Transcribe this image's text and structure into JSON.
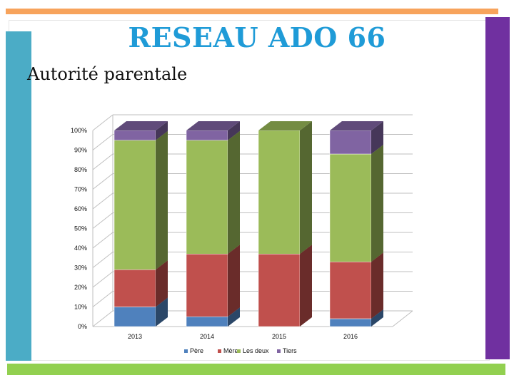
{
  "slide": {
    "title": "RESEAU ADO 66",
    "subtitle": "Autorité parentale"
  },
  "decor_colors": {
    "orange": "#f7a35c",
    "teal": "#4bacc6",
    "purple": "#7030a0",
    "green": "#92d050"
  },
  "chart_data": {
    "type": "bar",
    "stacked": true,
    "style": "3d",
    "categories": [
      "2013",
      "2014",
      "2015",
      "2016"
    ],
    "y_tick_labels": [
      "0%",
      "10%",
      "20%",
      "30%",
      "40%",
      "50%",
      "60%",
      "70%",
      "80%",
      "90%",
      "100%"
    ],
    "ylim": [
      0,
      100
    ],
    "grid": true,
    "legend_position": "bottom",
    "series": [
      {
        "name": "Père",
        "color": "#4f81bd",
        "values": [
          10,
          5,
          0,
          4
        ]
      },
      {
        "name": "Mère",
        "color": "#c0504d",
        "values": [
          19,
          32,
          37,
          29
        ]
      },
      {
        "name": "Les deux",
        "color": "#9bbb59",
        "values": [
          66,
          58,
          63,
          55
        ]
      },
      {
        "name": "Tiers",
        "color": "#8064a2",
        "values": [
          5,
          5,
          0,
          12
        ]
      }
    ]
  }
}
